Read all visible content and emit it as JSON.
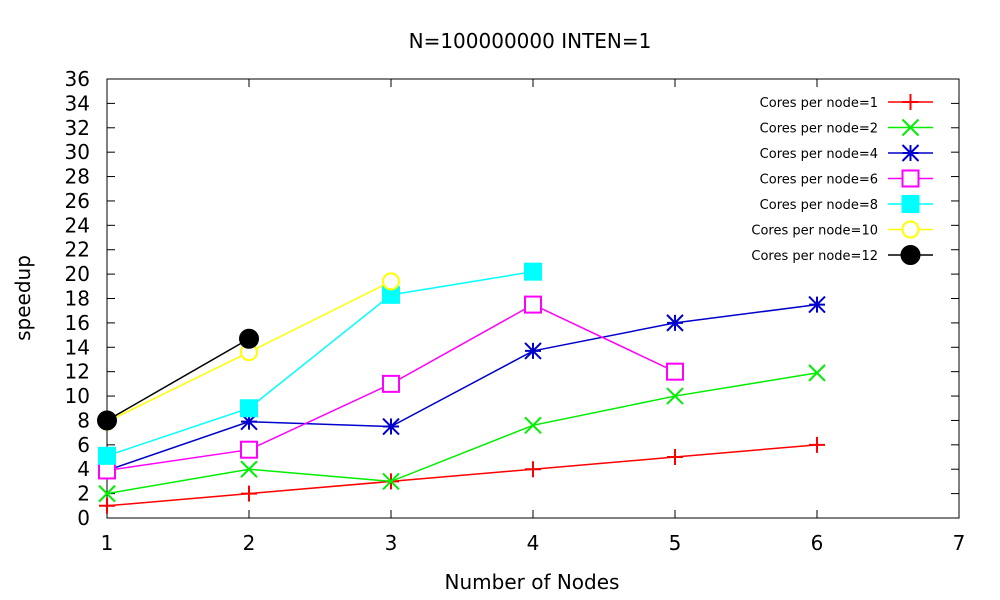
{
  "chart_data": {
    "type": "line",
    "title": "N=100000000 INTEN=1",
    "xlabel": "Number of Nodes",
    "ylabel": "speedup",
    "xlim": [
      1,
      7
    ],
    "ylim": [
      0,
      36
    ],
    "x_ticks": [
      1,
      2,
      3,
      4,
      5,
      6,
      7
    ],
    "y_ticks": [
      0,
      2,
      4,
      6,
      8,
      10,
      12,
      14,
      16,
      18,
      20,
      22,
      24,
      26,
      28,
      30,
      32,
      34,
      36
    ],
    "grid": false,
    "legend_position": "top-right",
    "series": [
      {
        "name": "Cores per node=1",
        "color": "#ff0000",
        "marker": "plus",
        "x": [
          1,
          2,
          3,
          4,
          5,
          6
        ],
        "y": [
          1,
          2,
          3,
          4,
          5,
          6
        ]
      },
      {
        "name": "Cores per node=2",
        "color": "#00ee00",
        "marker": "cross",
        "x": [
          1,
          2,
          3,
          4,
          5,
          6
        ],
        "y": [
          2,
          4,
          3,
          7.6,
          10,
          11.9
        ]
      },
      {
        "name": "Cores per node=4",
        "color": "#0000cc",
        "marker": "asterisk",
        "x": [
          1,
          2,
          3,
          4,
          5,
          6
        ],
        "y": [
          3.9,
          7.9,
          7.5,
          13.7,
          16,
          17.5
        ]
      },
      {
        "name": "Cores per node=6",
        "color": "#ff00ff",
        "marker": "open-square",
        "x": [
          1,
          2,
          3,
          4,
          5
        ],
        "y": [
          3.9,
          5.6,
          11,
          17.5,
          12
        ]
      },
      {
        "name": "Cores per node=8",
        "color": "#00ffff",
        "marker": "filled-square",
        "x": [
          1,
          2,
          3,
          4
        ],
        "y": [
          5.1,
          9,
          18.3,
          20.2
        ]
      },
      {
        "name": "Cores per node=10",
        "color": "#ffff00",
        "marker": "open-circle",
        "x": [
          1,
          2,
          3
        ],
        "y": [
          7.9,
          13.6,
          19.4
        ]
      },
      {
        "name": "Cores per node=12",
        "color": "#000000",
        "marker": "filled-circle",
        "x": [
          1,
          2
        ],
        "y": [
          8,
          14.7
        ]
      }
    ]
  }
}
